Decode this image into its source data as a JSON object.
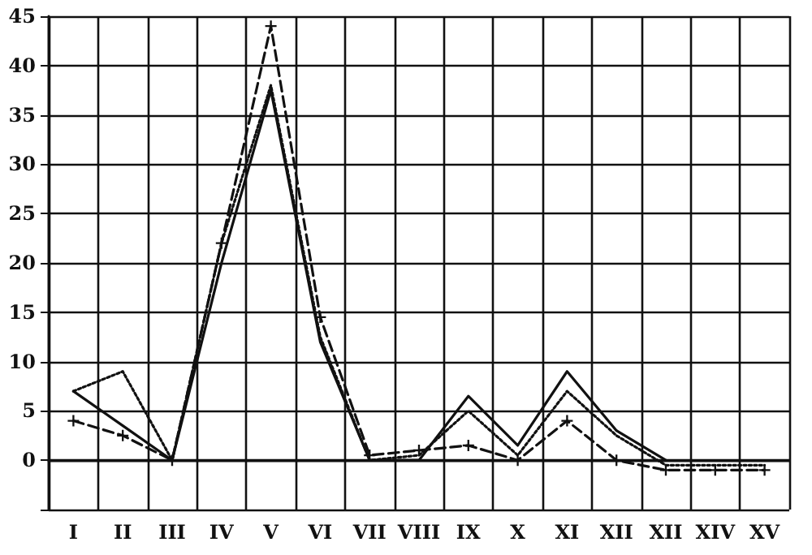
{
  "chart_data": {
    "type": "line",
    "categories": [
      "I",
      "II",
      "III",
      "IV",
      "V",
      "VI",
      "VII",
      "VIII",
      "IX",
      "X",
      "XI",
      "XII",
      "XII",
      "XIV",
      "XV"
    ],
    "series": [
      {
        "color": "#111111",
        "line_style": "solid",
        "marker": "none",
        "values": [
          7,
          3.5,
          0,
          20,
          37.5,
          12,
          0,
          0,
          6.5,
          1.5,
          9,
          3,
          0,
          null,
          null
        ]
      },
      {
        "color": "#111111",
        "line_style": "dotted",
        "marker": "none",
        "values": [
          7,
          9,
          0,
          22,
          38,
          12.5,
          0,
          0.5,
          5,
          0.5,
          7,
          2.5,
          -0.5,
          -0.5,
          -0.5
        ]
      },
      {
        "color": "#111111",
        "line_style": "dashed",
        "marker": "cross",
        "values": [
          4,
          2.5,
          0,
          22,
          44,
          14.5,
          0.5,
          1,
          1.5,
          0,
          4,
          0,
          -1,
          -1,
          -1
        ]
      }
    ],
    "ylim": [
      -5,
      45
    ],
    "yticks": [
      {
        "value": -5,
        "label": null
      },
      0,
      5,
      10,
      15,
      20,
      25,
      30,
      35,
      40,
      45
    ],
    "grid": true
  }
}
